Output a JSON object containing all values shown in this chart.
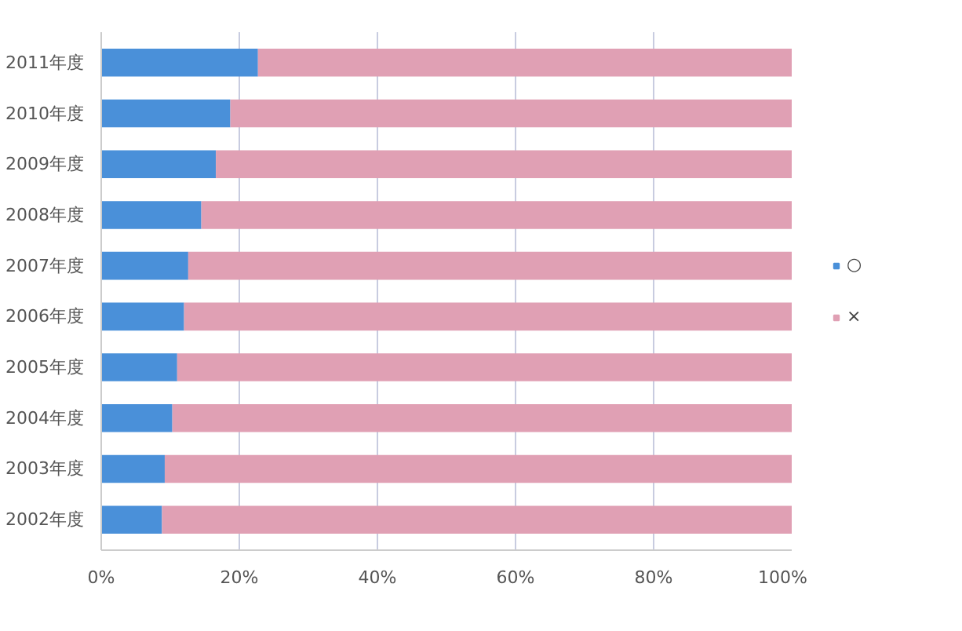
{
  "chart_data": {
    "type": "bar",
    "orientation": "horizontal",
    "stacked": true,
    "categories": [
      "2011年度",
      "2010年度",
      "2009年度",
      "2008年度",
      "2007年度",
      "2006年度",
      "2005年度",
      "2004年度",
      "2003年度",
      "2002年度"
    ],
    "series": [
      {
        "name": "○",
        "color": "#4a90d9",
        "values": [
          22.7,
          18.7,
          16.6,
          14.5,
          12.6,
          12.0,
          11.0,
          10.3,
          9.2,
          8.8
        ]
      },
      {
        "name": "×",
        "color": "#e0a0b4",
        "values": [
          77.3,
          81.3,
          83.4,
          85.5,
          87.4,
          88.0,
          89.0,
          89.7,
          90.8,
          91.2
        ]
      }
    ],
    "xlim": [
      0,
      100
    ],
    "xticks": [
      {
        "value": 0,
        "label": "0%"
      },
      {
        "value": 20,
        "label": "20%"
      },
      {
        "value": 40,
        "label": "40%"
      },
      {
        "value": 60,
        "label": "60%"
      },
      {
        "value": 80,
        "label": "80%"
      },
      {
        "value": 100,
        "label": "100%"
      }
    ],
    "grid": "x",
    "legend": "right"
  }
}
